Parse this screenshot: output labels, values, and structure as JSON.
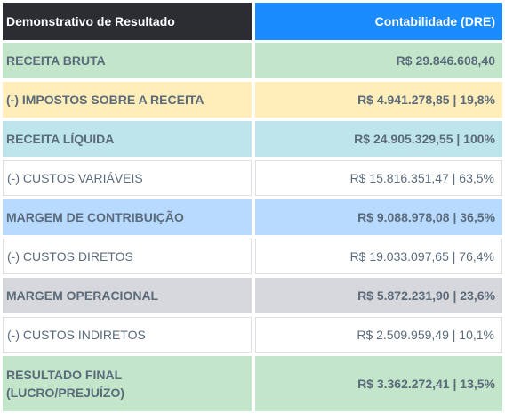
{
  "table": {
    "header": [
      "Demonstrativo de Resultado",
      "Contabilidade (DRE)"
    ],
    "rows": [
      [
        "RECEITA BRUTA",
        "R$ 29.846.608,40"
      ],
      [
        "(-) IMPOSTOS SOBRE A RECEITA",
        "R$ 4.941.278,85 | 19,8%"
      ],
      [
        "RECEITA LÍQUIDA",
        "R$ 24.905.329,55 |  100%"
      ],
      [
        "(-) CUSTOS VARIÁVEIS",
        "R$ 15.816.351,47 | 63,5%"
      ],
      [
        "MARGEM DE CONTRIBUIÇÃO",
        "R$ 9.088.978,08 | 36,5%"
      ],
      [
        "(-) CUSTOS DIRETOS",
        "R$ 19.033.097,65 | 76,4%"
      ],
      [
        "MARGEM OPERACIONAL",
        "R$ 5.872.231,90 | 23,6%"
      ],
      [
        "(-) CUSTOS INDIRETOS",
        "R$ 2.509.959,49 | 10,1%"
      ],
      [
        "RESULTADO FINAL (LUCRO/PREJUÍZO)",
        "R$ 3.362.272,41 | 13,5%"
      ]
    ]
  }
}
